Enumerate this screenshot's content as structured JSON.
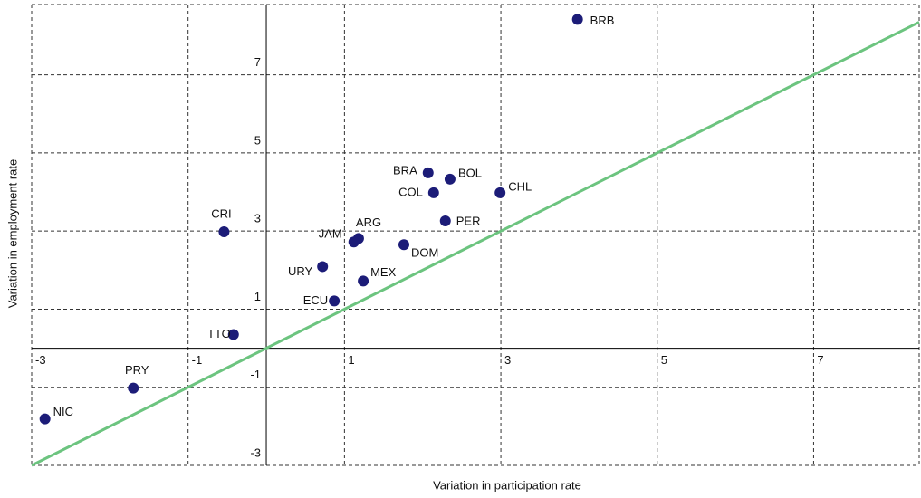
{
  "chart_data": {
    "type": "scatter",
    "x_label": "Variation in participation rate",
    "y_label": "Variation in employment rate",
    "labels": [
      "BRB",
      "BRA",
      "BOL",
      "COL",
      "CHL",
      "PER",
      "ARG",
      "JAM",
      "DOM",
      "URY",
      "MEX",
      "ECU",
      "CRI",
      "TTO",
      "PRY",
      "NIC"
    ],
    "x": [
      3.98,
      2.07,
      2.35,
      2.14,
      2.99,
      2.29,
      1.18,
      1.12,
      1.76,
      0.72,
      1.24,
      0.87,
      -0.54,
      -0.42,
      -1.7,
      -2.83
    ],
    "y": [
      8.42,
      4.49,
      4.33,
      3.98,
      3.98,
      3.26,
      2.81,
      2.72,
      2.65,
      2.09,
      1.72,
      1.21,
      2.98,
      0.35,
      -1.02,
      -1.81
    ],
    "color": "#1c1c78",
    "line_color": "#6cc47f",
    "xlim": [
      -3,
      8.35
    ],
    "ylim": [
      -3,
      8.8
    ],
    "xticks": [
      -3,
      -1,
      1,
      3,
      5,
      7
    ],
    "yticks": [
      -3,
      -1,
      1,
      3,
      5,
      7
    ],
    "grid": true
  }
}
